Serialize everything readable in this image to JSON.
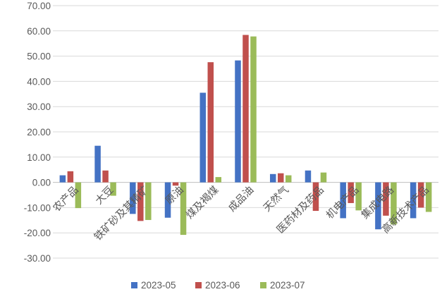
{
  "chart_data": {
    "type": "bar",
    "categories": [
      "农产品",
      "大豆",
      "铁矿砂及其精矿",
      "原油",
      "煤及褐煤",
      "成品油",
      "天然气",
      "医药材及药品",
      "机电产品",
      "集成电路",
      "高新技术产品"
    ],
    "series": [
      {
        "name": "2023-05",
        "color": "#4472c4",
        "values": [
          2.8,
          14.5,
          -12.5,
          -14.0,
          35.5,
          48.3,
          3.3,
          4.7,
          -14.2,
          -18.6,
          -14.2
        ]
      },
      {
        "name": "2023-06",
        "color": "#c0504d",
        "values": [
          4.4,
          4.7,
          -15.3,
          -1.3,
          47.6,
          58.4,
          3.6,
          -11.3,
          -8.2,
          -13.2,
          -10.0
        ]
      },
      {
        "name": "2023-07",
        "color": "#9bbb59",
        "values": [
          -10.2,
          -5.3,
          -14.9,
          -20.8,
          2.1,
          57.8,
          2.8,
          3.9,
          -11.1,
          -16.7,
          -11.7
        ]
      }
    ],
    "y_ticks": [
      "70.00",
      "60.00",
      "50.00",
      "40.00",
      "30.00",
      "20.00",
      "10.00",
      "0.00",
      "-10.00",
      "-20.00",
      "-30.00"
    ],
    "ylim": [
      -30,
      70
    ],
    "grid": true,
    "legend_position": "bottom"
  }
}
